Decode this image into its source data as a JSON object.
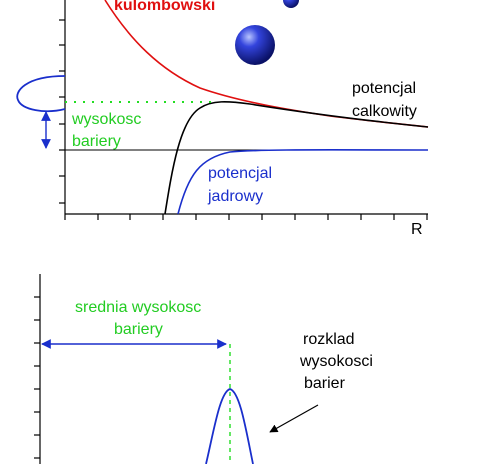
{
  "top_diagram": {
    "coulomb_label": "kulombowski",
    "total_potential_label_line1": "potencjal",
    "total_potential_label_line2": "calkowity",
    "barrier_height_label_line1": "wysokosc",
    "barrier_height_label_line2": "bariery",
    "nuclear_potential_label_line1": "potencjal",
    "nuclear_potential_label_line2": "jadrowy",
    "x_axis_label": "R"
  },
  "bottom_diagram": {
    "mean_barrier_label_line1": "srednia wysokosc",
    "mean_barrier_label_line2": "bariery",
    "distribution_label_line1": "rozklad",
    "distribution_label_line2": "wysokosci",
    "distribution_label_line3": "barier"
  },
  "colors": {
    "coulomb": "#e01010",
    "total": "#000000",
    "nuclear": "#1a2fcc",
    "highlight": "#22dd22",
    "arrow": "#1a2fcc"
  }
}
